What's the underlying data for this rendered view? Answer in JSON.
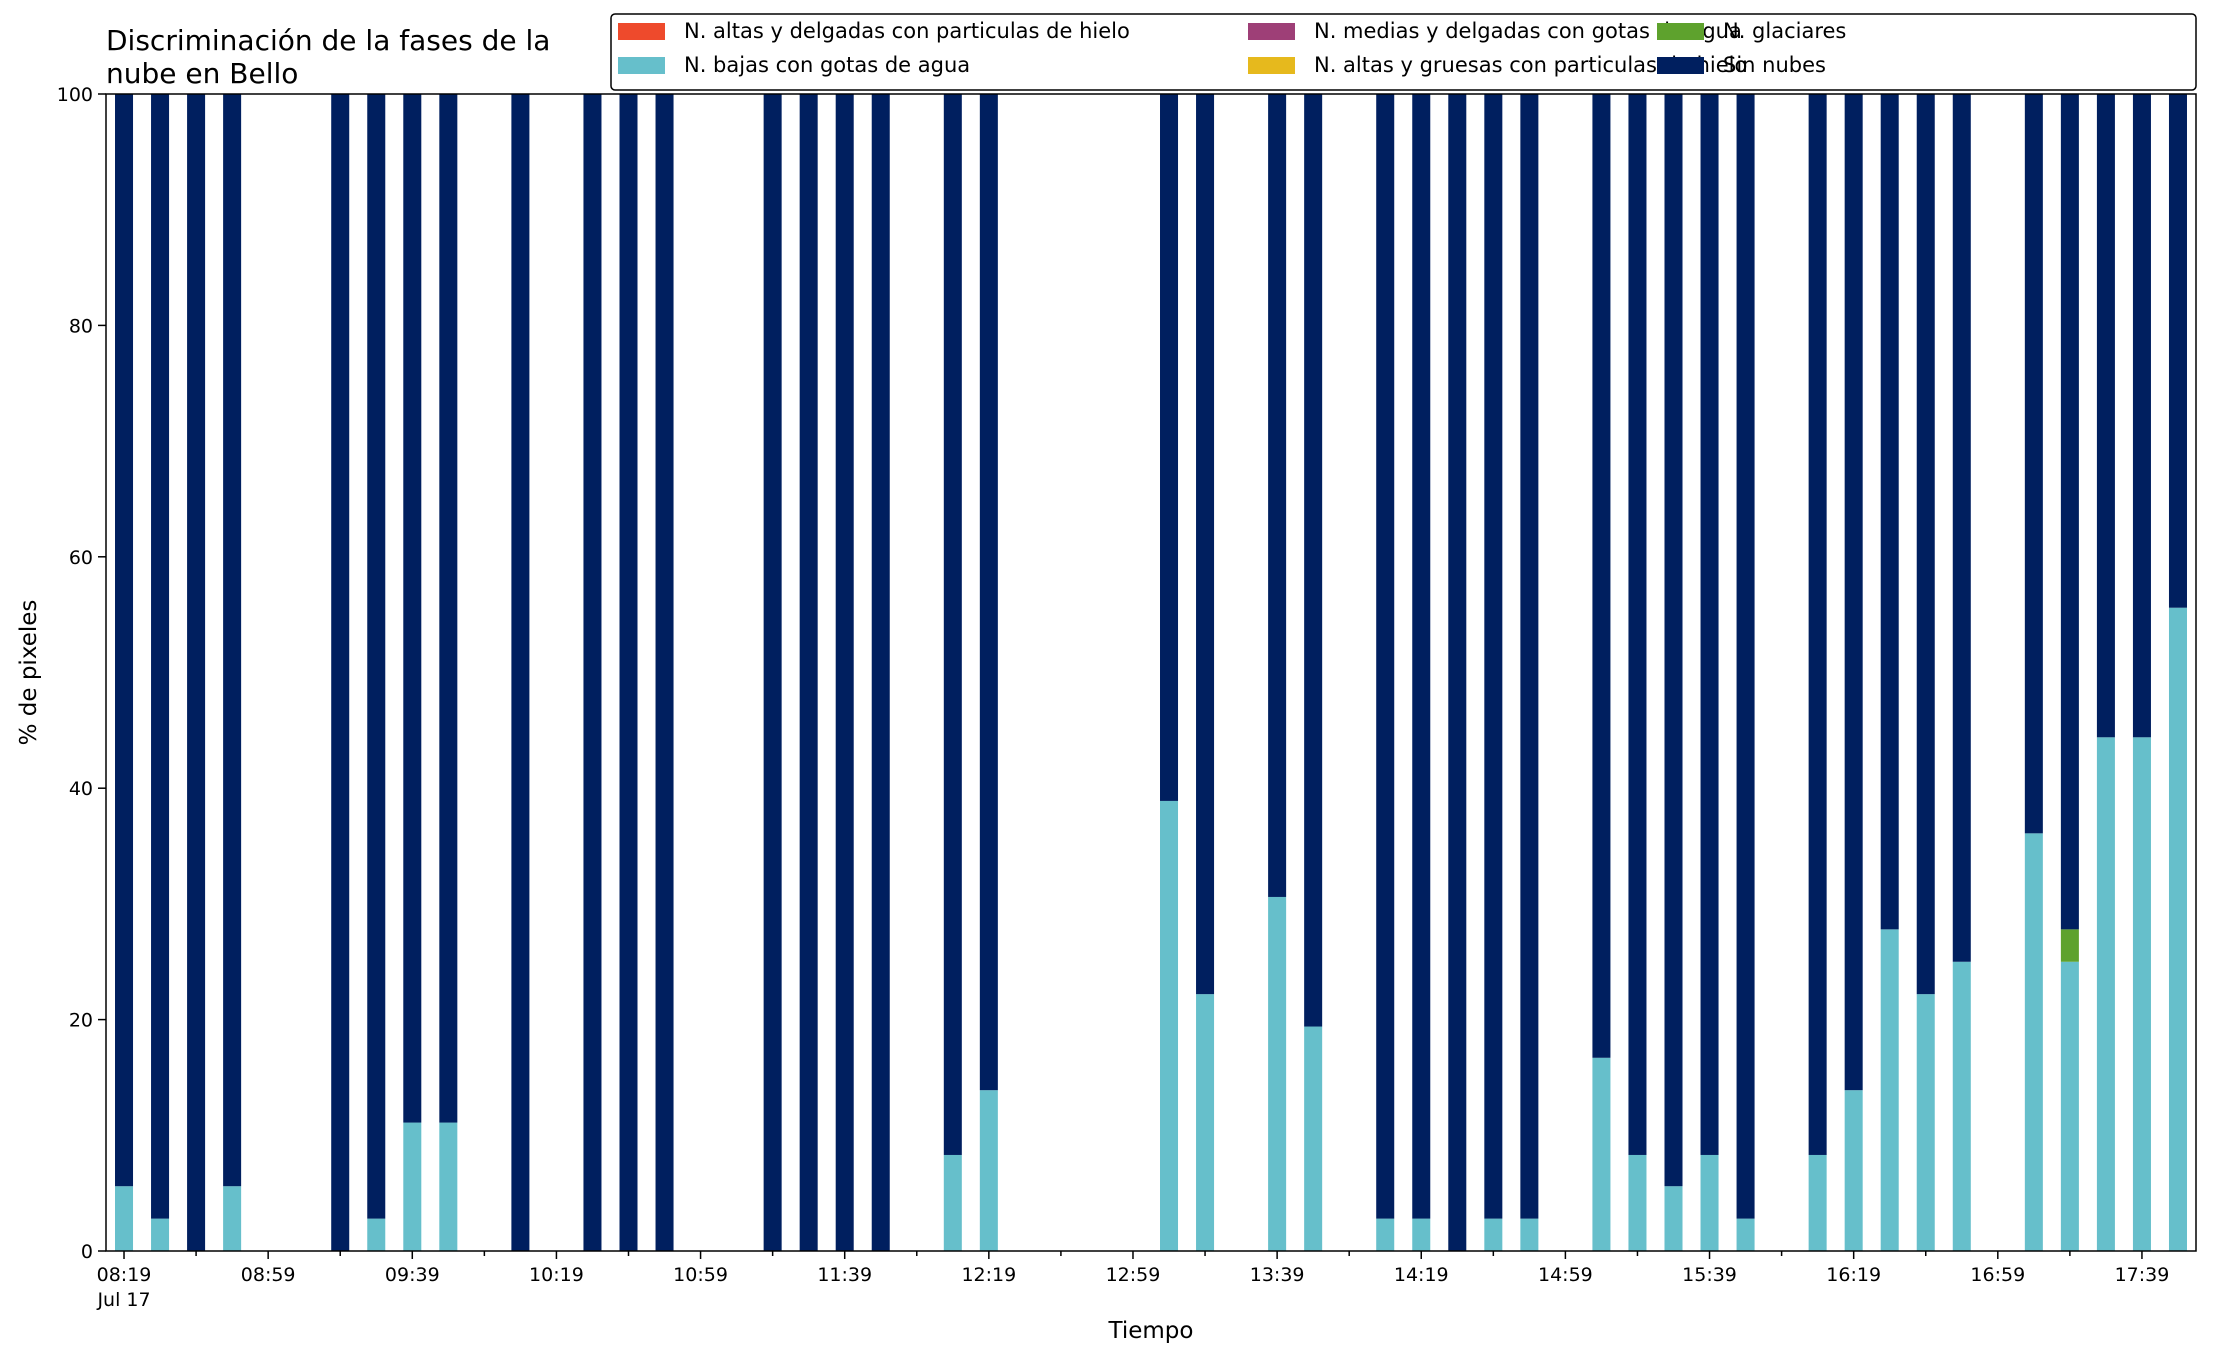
{
  "chart_data": {
    "type": "bar",
    "stacked": true,
    "title_lines": [
      "Discriminación de la fases de la",
      "nube en Bello"
    ],
    "xlabel": "Tiempo",
    "ylabel": "% de pixeles",
    "ylim": [
      0,
      100
    ],
    "yticks": [
      0,
      20,
      40,
      60,
      80,
      100
    ],
    "x_start": "08:19",
    "x_step_minutes": 10,
    "x_count": 58,
    "x_tick_labels": [
      "08:19",
      "08:59",
      "09:39",
      "10:19",
      "10:59",
      "11:39",
      "12:19",
      "12:59",
      "13:39",
      "14:19",
      "14:59",
      "15:39",
      "16:19",
      "16:59",
      "17:39"
    ],
    "x_date_label": "Jul 17",
    "legend_position": "top-right",
    "legend": [
      {
        "name": "N. altas y delgadas con particulas de hielo",
        "color": "#ee4a2c"
      },
      {
        "name": "N. bajas con gotas de agua",
        "color": "#66bfcb"
      },
      {
        "name": "N. medias y delgadas con gotas de agua",
        "color": "#9e3f77"
      },
      {
        "name": "N. altas y gruesas con particulas de hielo",
        "color": "#e6b91d"
      },
      {
        "name": "N. glaciares",
        "color": "#5ea22d"
      },
      {
        "name": "Sin nubes",
        "color": "#001f5f"
      }
    ],
    "bars": [
      {
        "time": "08:19",
        "bajas": 5.6,
        "glaciares": 0,
        "sin_nubes": 94.4
      },
      {
        "time": "08:29",
        "bajas": 2.8,
        "glaciares": 0,
        "sin_nubes": 97.2
      },
      {
        "time": "08:39",
        "bajas": 0,
        "glaciares": 0,
        "sin_nubes": 100
      },
      {
        "time": "08:49",
        "bajas": 5.6,
        "glaciares": 0,
        "sin_nubes": 94.4
      },
      {
        "time": "09:19",
        "bajas": 0,
        "glaciares": 0,
        "sin_nubes": 100
      },
      {
        "time": "09:29",
        "bajas": 2.8,
        "glaciares": 0,
        "sin_nubes": 97.2
      },
      {
        "time": "09:39",
        "bajas": 11.1,
        "glaciares": 0,
        "sin_nubes": 88.9
      },
      {
        "time": "09:49",
        "bajas": 11.1,
        "glaciares": 0,
        "sin_nubes": 88.9
      },
      {
        "time": "10:09",
        "bajas": 0,
        "glaciares": 0,
        "sin_nubes": 100
      },
      {
        "time": "10:29",
        "bajas": 0,
        "glaciares": 0,
        "sin_nubes": 100
      },
      {
        "time": "10:39",
        "bajas": 0,
        "glaciares": 0,
        "sin_nubes": 100
      },
      {
        "time": "10:49",
        "bajas": 0,
        "glaciares": 0,
        "sin_nubes": 100
      },
      {
        "time": "11:19",
        "bajas": 0,
        "glaciares": 0,
        "sin_nubes": 100
      },
      {
        "time": "11:29",
        "bajas": 0,
        "glaciares": 0,
        "sin_nubes": 100
      },
      {
        "time": "11:39",
        "bajas": 0,
        "glaciares": 0,
        "sin_nubes": 100
      },
      {
        "time": "11:49",
        "bajas": 0,
        "glaciares": 0,
        "sin_nubes": 100
      },
      {
        "time": "12:09",
        "bajas": 8.3,
        "glaciares": 0,
        "sin_nubes": 91.7
      },
      {
        "time": "12:19",
        "bajas": 13.9,
        "glaciares": 0,
        "sin_nubes": 86.1
      },
      {
        "time": "13:09",
        "bajas": 38.9,
        "glaciares": 0,
        "sin_nubes": 61.1
      },
      {
        "time": "13:19",
        "bajas": 22.2,
        "glaciares": 0,
        "sin_nubes": 77.8
      },
      {
        "time": "13:39",
        "bajas": 30.6,
        "glaciares": 0,
        "sin_nubes": 69.4
      },
      {
        "time": "13:49",
        "bajas": 19.4,
        "glaciares": 0,
        "sin_nubes": 80.6
      },
      {
        "time": "14:09",
        "bajas": 2.8,
        "glaciares": 0,
        "sin_nubes": 97.2
      },
      {
        "time": "14:19",
        "bajas": 2.8,
        "glaciares": 0,
        "sin_nubes": 97.2
      },
      {
        "time": "14:29",
        "bajas": 0,
        "glaciares": 0,
        "sin_nubes": 100
      },
      {
        "time": "14:39",
        "bajas": 2.8,
        "glaciares": 0,
        "sin_nubes": 97.2
      },
      {
        "time": "14:49",
        "bajas": 2.8,
        "glaciares": 0,
        "sin_nubes": 97.2
      },
      {
        "time": "15:09",
        "bajas": 16.7,
        "glaciares": 0,
        "sin_nubes": 83.3
      },
      {
        "time": "15:19",
        "bajas": 8.3,
        "glaciares": 0,
        "sin_nubes": 91.7
      },
      {
        "time": "15:29",
        "bajas": 5.6,
        "glaciares": 0,
        "sin_nubes": 94.4
      },
      {
        "time": "15:39",
        "bajas": 8.3,
        "glaciares": 0,
        "sin_nubes": 91.7
      },
      {
        "time": "15:49",
        "bajas": 2.8,
        "glaciares": 0,
        "sin_nubes": 97.2
      },
      {
        "time": "16:09",
        "bajas": 8.3,
        "glaciares": 0,
        "sin_nubes": 91.7
      },
      {
        "time": "16:19",
        "bajas": 13.9,
        "glaciares": 0,
        "sin_nubes": 86.1
      },
      {
        "time": "16:29",
        "bajas": 27.8,
        "glaciares": 0,
        "sin_nubes": 72.2
      },
      {
        "time": "16:39",
        "bajas": 22.2,
        "glaciares": 0,
        "sin_nubes": 77.8
      },
      {
        "time": "16:49",
        "bajas": 25.0,
        "glaciares": 0,
        "sin_nubes": 75.0
      },
      {
        "time": "17:09",
        "bajas": 36.1,
        "glaciares": 0,
        "sin_nubes": 63.9
      },
      {
        "time": "17:19",
        "bajas": 25.0,
        "glaciares": 2.8,
        "sin_nubes": 72.2
      },
      {
        "time": "17:29",
        "bajas": 44.4,
        "glaciares": 0,
        "sin_nubes": 55.6
      },
      {
        "time": "17:39",
        "bajas": 44.4,
        "glaciares": 0,
        "sin_nubes": 55.6
      },
      {
        "time": "17:49",
        "bajas": 55.6,
        "glaciares": 0,
        "sin_nubes": 44.4
      }
    ]
  }
}
